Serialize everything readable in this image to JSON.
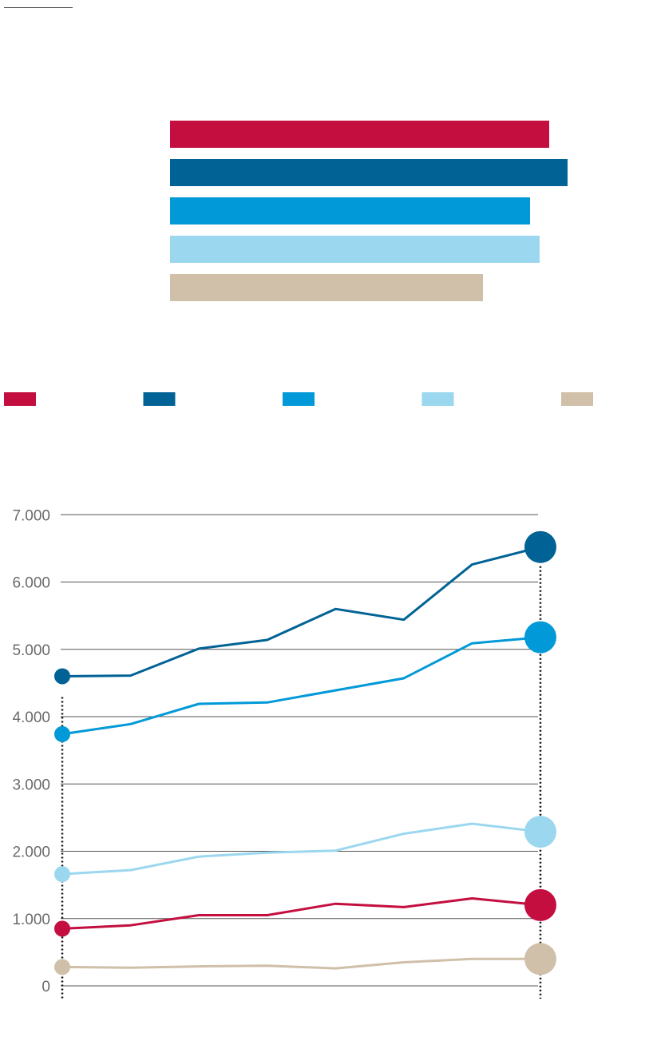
{
  "colors": {
    "crimson": "#C30E3F",
    "dark_blue": "#016395",
    "blue": "#0199D8",
    "light_blue": "#9BD7EF",
    "tan": "#D0BFA9",
    "grid": "#555555",
    "tick_text": "#6b6b6b"
  },
  "chart_data": [
    {
      "type": "bar",
      "orientation": "horizontal",
      "categories": [
        "",
        "",
        "",
        "",
        ""
      ],
      "values": [
        4.75,
        4.98,
        4.51,
        4.63,
        3.92
      ],
      "colors": [
        "#C30E3F",
        "#016395",
        "#0199D8",
        "#9BD7EF",
        "#D0BFA9"
      ],
      "grid": false,
      "value_axis_labels": false,
      "legend": {
        "placement": "bottom",
        "entries": [
          {
            "color": "#C30E3F"
          },
          {
            "color": "#016395"
          },
          {
            "color": "#0199D8"
          },
          {
            "color": "#9BD7EF"
          },
          {
            "color": "#D0BFA9"
          }
        ]
      }
    },
    {
      "type": "line",
      "x": [
        1,
        2,
        3,
        4,
        5,
        6,
        7,
        8
      ],
      "ylim": [
        0,
        7000
      ],
      "yticks": [
        0,
        1000,
        2000,
        3000,
        4000,
        5000,
        6000,
        7000
      ],
      "ytick_labels": [
        "0",
        "1.000",
        "2.000",
        "3.000",
        "4.000",
        "5.000",
        "6.000",
        "7.000"
      ],
      "grid": true,
      "series": [
        {
          "color": "#016395",
          "values": [
            4600,
            4610,
            5010,
            5140,
            5600,
            5440,
            6260,
            6520
          ]
        },
        {
          "color": "#0199D8",
          "values": [
            3740,
            3890,
            4190,
            4210,
            4390,
            4570,
            5090,
            5180
          ]
        },
        {
          "color": "#9BD7EF",
          "values": [
            1660,
            1720,
            1920,
            1980,
            2010,
            2260,
            2410,
            2290
          ]
        },
        {
          "color": "#C30E3F",
          "values": [
            850,
            900,
            1050,
            1050,
            1220,
            1170,
            1300,
            1200
          ]
        },
        {
          "color": "#D0BFA9",
          "values": [
            280,
            270,
            290,
            300,
            260,
            350,
            400,
            400
          ]
        }
      ]
    }
  ]
}
